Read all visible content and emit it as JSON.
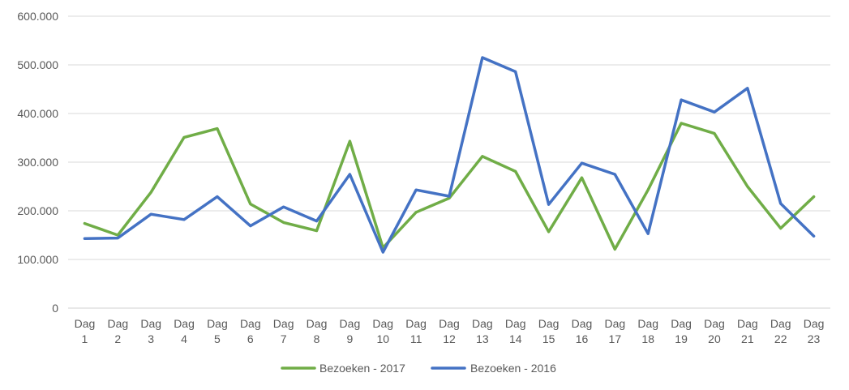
{
  "chart_data": {
    "type": "line",
    "title": "",
    "xlabel": "",
    "ylabel": "",
    "ylim": [
      0,
      600000
    ],
    "yticks": [
      0,
      100000,
      200000,
      300000,
      400000,
      500000,
      600000
    ],
    "ytick_labels": [
      "0",
      "100.000",
      "200.000",
      "300.000",
      "400.000",
      "500.000",
      "600.000"
    ],
    "grid": true,
    "legend_position": "bottom",
    "categories": [
      [
        "Dag",
        "1"
      ],
      [
        "Dag",
        "2"
      ],
      [
        "Dag",
        "3"
      ],
      [
        "Dag",
        "4"
      ],
      [
        "Dag",
        "5"
      ],
      [
        "Dag",
        "6"
      ],
      [
        "Dag",
        "7"
      ],
      [
        "Dag",
        "8"
      ],
      [
        "Dag",
        "9"
      ],
      [
        "Dag",
        "10"
      ],
      [
        "Dag",
        "11"
      ],
      [
        "Dag",
        "12"
      ],
      [
        "Dag",
        "13"
      ],
      [
        "Dag",
        "14"
      ],
      [
        "Dag",
        "15"
      ],
      [
        "Dag",
        "16"
      ],
      [
        "Dag",
        "17"
      ],
      [
        "Dag",
        "18"
      ],
      [
        "Dag",
        "19"
      ],
      [
        "Dag",
        "20"
      ],
      [
        "Dag",
        "21"
      ],
      [
        "Dag",
        "22"
      ],
      [
        "Dag",
        "23"
      ]
    ],
    "series": [
      {
        "name": "Bezoeken - 2017",
        "color": "#70AD47",
        "values": [
          174000,
          150000,
          238000,
          351000,
          369000,
          214000,
          176000,
          159000,
          343000,
          124000,
          197000,
          226000,
          312000,
          281000,
          157000,
          268000,
          121000,
          243000,
          380000,
          359000,
          250000,
          164000,
          229000
        ]
      },
      {
        "name": "Bezoeken - 2016",
        "color": "#4472C4",
        "values": [
          143000,
          144000,
          193000,
          182000,
          229000,
          169000,
          208000,
          179000,
          275000,
          115000,
          243000,
          230000,
          515000,
          486000,
          213000,
          298000,
          275000,
          153000,
          428000,
          403000,
          452000,
          215000,
          148000
        ]
      }
    ]
  }
}
